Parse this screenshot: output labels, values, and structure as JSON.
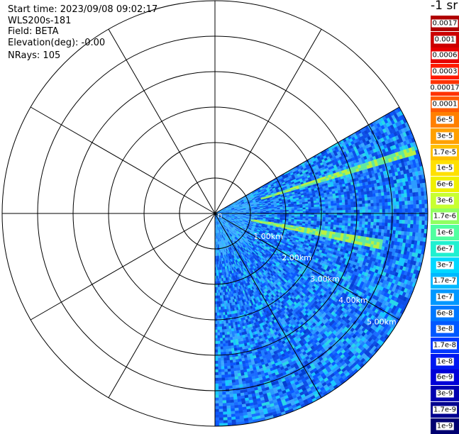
{
  "info": {
    "start_time": "Start time: 2023/09/08 09:02:17",
    "instrument": "WLS200s-181",
    "field": "Field: BETA",
    "elevation": "Elevation(deg): -0.00",
    "nrays": "NRays: 105"
  },
  "colorbar": {
    "title": "-1 sr",
    "labels": [
      "0.0017",
      "0.001",
      "0.0006",
      "0.0003",
      "0.00017",
      "0.0001",
      "6e-5",
      "3e-5",
      "1.7e-5",
      "1e-5",
      "6e-6",
      "3e-6",
      "1.7e-6",
      "1e-6",
      "6e-7",
      "3e-7",
      "1.7e-7",
      "1e-7",
      "6e-8",
      "3e-8",
      "1.7e-8",
      "1e-8",
      "6e-9",
      "3e-9",
      "1.7e-9",
      "1e-9"
    ],
    "colors": [
      "#b00000",
      "#cc0000",
      "#e60000",
      "#ff1a00",
      "#ff3300",
      "#ff5a00",
      "#ff8000",
      "#ffa000",
      "#ffc000",
      "#ffe000",
      "#f0f000",
      "#c8ff30",
      "#90ff60",
      "#50ffa0",
      "#20f0d0",
      "#00d8ff",
      "#00b8ff",
      "#0098ff",
      "#0078ff",
      "#0058ff",
      "#0038ff",
      "#0018f0",
      "#0000d8",
      "#0000b0",
      "#000090",
      "#000070"
    ]
  },
  "chart_data": {
    "type": "polar-ppi",
    "field": "BETA",
    "units": "-1 sr",
    "range_rings_km": [
      1,
      2,
      3,
      4,
      5,
      6
    ],
    "range_labels": [
      "n",
      "1.00km",
      "2.00km",
      "3.00km",
      "4.00km",
      "5.00km"
    ],
    "radial_lines_deg": [
      0,
      30,
      60,
      90,
      120,
      150,
      180,
      210,
      240,
      270,
      300,
      330
    ],
    "scan_sector_deg": [
      60,
      180
    ],
    "elevation_deg": -0.0,
    "nrays": 105,
    "max_range_km": 6.0,
    "features": [
      {
        "name": "high-backscatter line A",
        "azimuth_deg": 72,
        "range_km": [
          1.3,
          5.9
        ]
      },
      {
        "name": "high-backscatter line B",
        "azimuth_deg": 100,
        "range_km": [
          1.0,
          4.8
        ]
      }
    ]
  }
}
